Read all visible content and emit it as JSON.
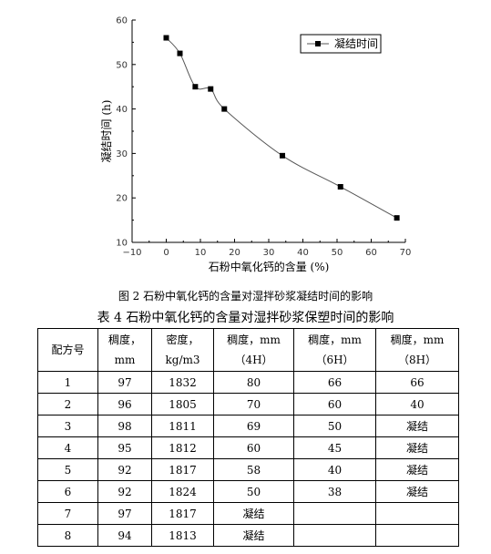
{
  "chart_data": {
    "type": "line",
    "x": [
      0,
      4,
      8.5,
      13,
      17,
      34,
      51,
      67.5
    ],
    "series": [
      {
        "name": "凝结时间",
        "values": [
          56,
          52.5,
          45,
          44.5,
          40,
          29.5,
          22.5,
          15.5
        ]
      }
    ],
    "xlabel": "石粉中氧化钙的含量 (%)",
    "ylabel": "凝结时间 (h)",
    "xlim": [
      -10,
      70
    ],
    "ylim": [
      10,
      60
    ],
    "xticks": [
      -10,
      0,
      10,
      20,
      30,
      40,
      50,
      60,
      70
    ],
    "yticks": [
      10,
      20,
      30,
      40,
      50,
      60
    ],
    "legend": "top-right",
    "grid": false,
    "line_color": "#555555",
    "marker_color": "#000000"
  },
  "figure_caption": "图 2 石粉中氧化钙的含量对湿拌砂浆凝结时间的影响",
  "table": {
    "title": "表 4 石粉中氧化钙的含量对湿拌砂浆保塑时间的影响",
    "headers": [
      [
        "配方号"
      ],
      [
        "稠度，",
        "mm"
      ],
      [
        "密度，",
        "kg/m3"
      ],
      [
        "稠度，mm",
        "（4H）"
      ],
      [
        "稠度，mm",
        "（6H）"
      ],
      [
        "稠度，mm",
        "（8H）"
      ]
    ],
    "rows": [
      [
        "1",
        "97",
        "1832",
        "80",
        "66",
        "66"
      ],
      [
        "2",
        "96",
        "1805",
        "70",
        "60",
        "40"
      ],
      [
        "3",
        "98",
        "1811",
        "69",
        "50",
        "凝结"
      ],
      [
        "4",
        "95",
        "1812",
        "60",
        "45",
        "凝结"
      ],
      [
        "5",
        "92",
        "1817",
        "58",
        "40",
        "凝结"
      ],
      [
        "6",
        "92",
        "1824",
        "50",
        "38",
        "凝结"
      ],
      [
        "7",
        "97",
        "1817",
        "凝结",
        "",
        ""
      ],
      [
        "8",
        "94",
        "1813",
        "凝结",
        "",
        ""
      ]
    ]
  }
}
